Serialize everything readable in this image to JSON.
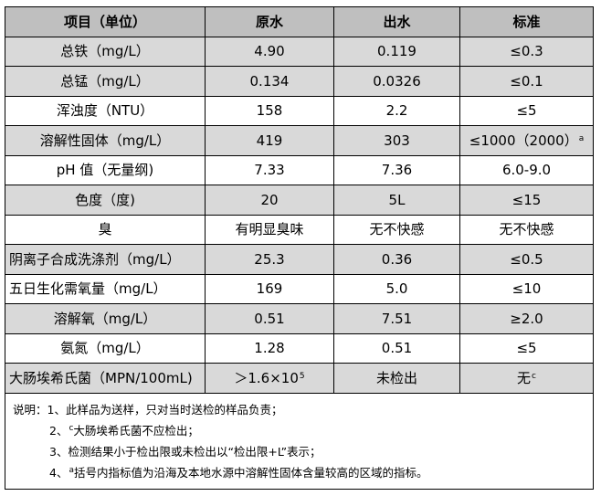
{
  "header": [
    "项目（单位）",
    "原水",
    "出水",
    "标准"
  ],
  "rows": [
    {
      "item": "总铁（mg/L）",
      "raw": "4.90",
      "out": "0.119",
      "std": "≤0.3",
      "std_sup": "",
      "raw_sup": ""
    },
    {
      "item": "总锰（mg/L）",
      "raw": "0.134",
      "out": "0.0326",
      "std": "≤0.1",
      "std_sup": "",
      "raw_sup": ""
    },
    {
      "item": "浑浊度（NTU）",
      "raw": "158",
      "out": "2.2",
      "std": "≤5",
      "std_sup": "",
      "raw_sup": ""
    },
    {
      "item": "溶解性固体（mg/L）",
      "raw": "419",
      "out": "303",
      "std": "≤1000（2000）",
      "std_sup": "a",
      "raw_sup": ""
    },
    {
      "item": "pH 值（无量纲)",
      "raw": "7.33",
      "out": "7.36",
      "std": "6.0-9.0",
      "std_sup": "",
      "raw_sup": ""
    },
    {
      "item": "色度（度)",
      "raw": "20",
      "out": "5L",
      "std": "≤15",
      "std_sup": "",
      "raw_sup": ""
    },
    {
      "item": "臭",
      "raw": "有明显臭味",
      "out": "无不快感",
      "std": "无不快感",
      "std_sup": "",
      "raw_sup": ""
    },
    {
      "item": "阴离子合成洗涤剂（mg/L）",
      "raw": "25.3",
      "out": "0.36",
      "std": "≤0.5",
      "std_sup": "",
      "raw_sup": ""
    },
    {
      "item": "五日生化需氧量（mg/L）",
      "raw": "169",
      "out": "5.0",
      "std": "≤10",
      "std_sup": "",
      "raw_sup": ""
    },
    {
      "item": "溶解氧（mg/L）",
      "raw": "0.51",
      "out": "7.51",
      "std": "≥2.0",
      "std_sup": "",
      "raw_sup": ""
    },
    {
      "item": "氨氮（mg/L）",
      "raw": "1.28",
      "out": "0.51",
      "std": "≤5",
      "std_sup": "",
      "raw_sup": ""
    },
    {
      "item": "大肠埃希氏菌（MPN/100mL)",
      "raw": "＞1.6×10",
      "out": "未检出",
      "std": "无",
      "std_sup": "c",
      "raw_sup": "5"
    }
  ],
  "notes": {
    "line1": "说明：1、此样品为送样，只对当时送检的样品负责；",
    "line2_num": "2、",
    "line2_sup": "c",
    "line2_text": "大肠埃希氏菌不应检出；",
    "line3": "3、检测结果小于检出限或未检出以“检出限+L”表示；",
    "line4_num": "4、",
    "line4_sup": "a",
    "line4_text": "括号内指标值为沿海及本地水源中溶解性固体含量较高的区域的指标。"
  }
}
